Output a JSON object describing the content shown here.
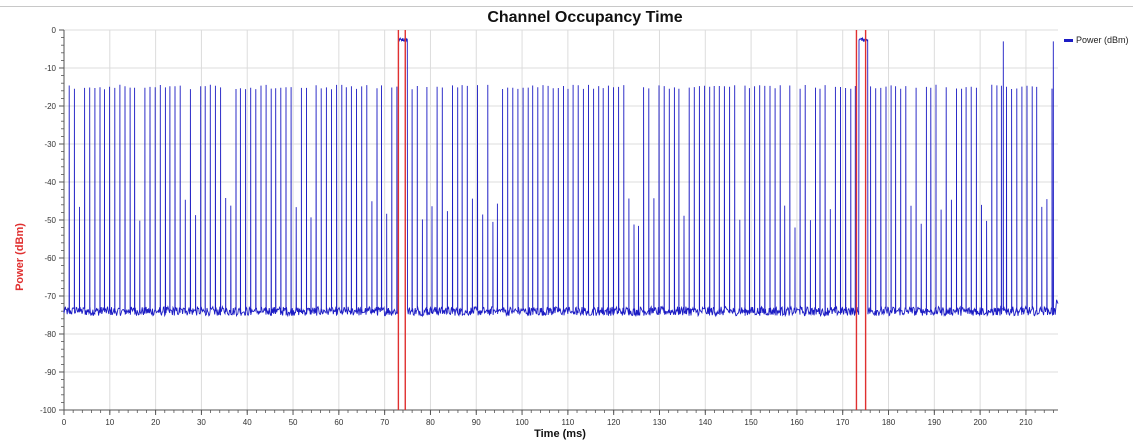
{
  "chart_data": {
    "type": "line",
    "title": "Channel Occupancy Time",
    "xlabel": "Time (ms)",
    "ylabel": "Power (dBm)",
    "xlim": [
      0,
      217
    ],
    "ylim": [
      -100,
      0
    ],
    "x_ticks": [
      0,
      10,
      20,
      30,
      40,
      50,
      60,
      70,
      80,
      90,
      100,
      110,
      120,
      130,
      140,
      150,
      160,
      170,
      180,
      190,
      200,
      210
    ],
    "y_ticks": [
      0,
      -10,
      -20,
      -30,
      -40,
      -50,
      -60,
      -70,
      -80,
      -90,
      -100
    ],
    "grid": true,
    "legend_position": "top-right",
    "series": [
      {
        "name": "Power (dBm)",
        "color": "#1c1cc4",
        "noise_floor_dbm": -74,
        "burst_peak_dbm": -15,
        "burst_period_ms": 1.1,
        "burst_windows_ms": [
          [
            1,
            73
          ],
          [
            75,
            173.5
          ],
          [
            175.5,
            216
          ]
        ],
        "occupied_windows_ms": [
          [
            73,
            75
          ],
          [
            173.5,
            175.5
          ]
        ],
        "occupied_level_dbm": -2.5,
        "isolated_spikes": [
          {
            "x": 205,
            "y": -3
          },
          {
            "x": 216,
            "y": -3
          }
        ]
      }
    ],
    "markers": {
      "color": "#e03030",
      "x": [
        73,
        74.5,
        173,
        175
      ]
    }
  },
  "legend": {
    "label": "Power (dBm)"
  }
}
